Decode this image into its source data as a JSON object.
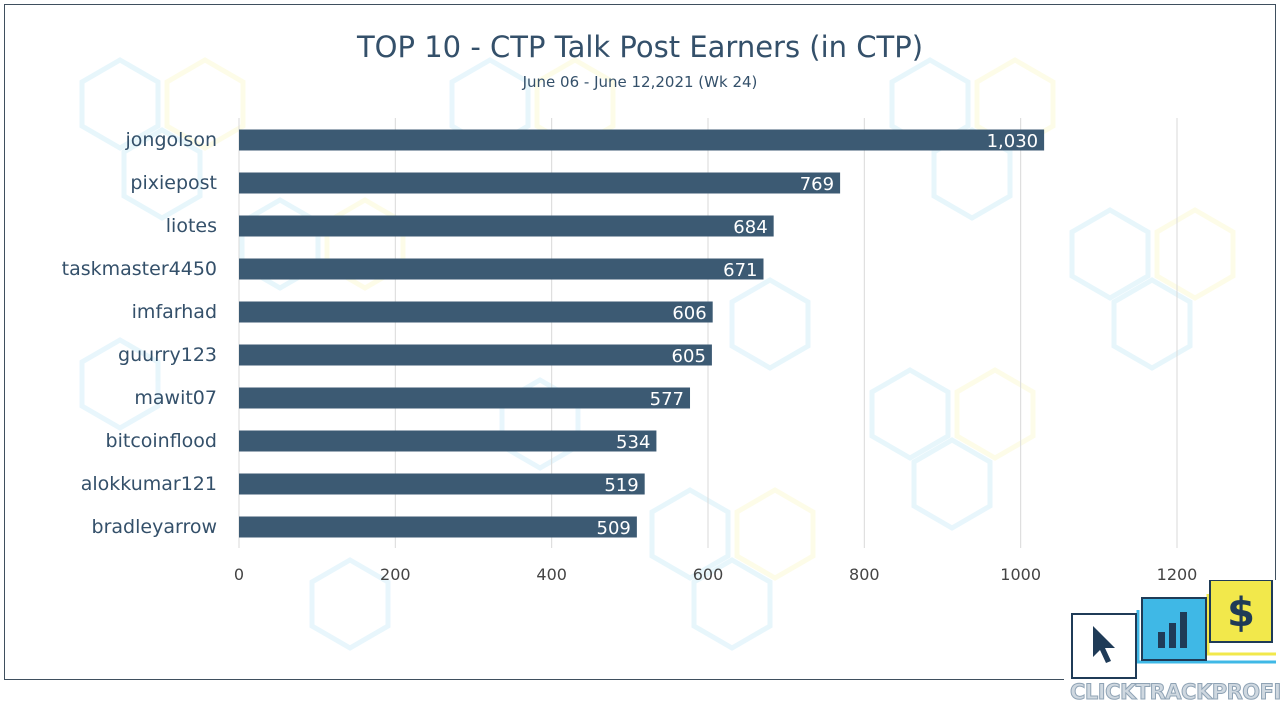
{
  "colors": {
    "bar": "#3c5a73",
    "text": "#34506a",
    "grid": "#d9d9d9",
    "value_label": "#ffffff",
    "logo_blue": "#3fb8e6",
    "logo_yellow": "#f2e84b",
    "logo_navy": "#1f3b57"
  },
  "chart_data": {
    "type": "bar",
    "orientation": "horizontal",
    "title": "TOP 10 - CTP Talk Post Earners (in CTP)",
    "subtitle": "June 06 - June 12,2021 (Wk 24)",
    "categories": [
      "jongolson",
      "pixiepost",
      "liotes",
      "taskmaster4450",
      "imfarhad",
      "guurry123",
      "mawit07",
      "bitcoinflood",
      "alokkumar121",
      "bradleyarrow"
    ],
    "values": [
      1030,
      769,
      684,
      671,
      606,
      605,
      577,
      534,
      519,
      509
    ],
    "value_labels": [
      "1,030",
      "769",
      "684",
      "671",
      "606",
      "605",
      "577",
      "534",
      "519",
      "509"
    ],
    "xlim": [
      0,
      1200
    ],
    "x_ticks": [
      0,
      200,
      400,
      600,
      800,
      1000,
      1200
    ],
    "grid": true,
    "legend": "none"
  },
  "logo": {
    "icons": [
      "cursor-icon",
      "bar-chart-icon",
      "dollar-icon"
    ],
    "dollar_glyph": "$",
    "text": "CLICKTRACKPROFIT"
  }
}
